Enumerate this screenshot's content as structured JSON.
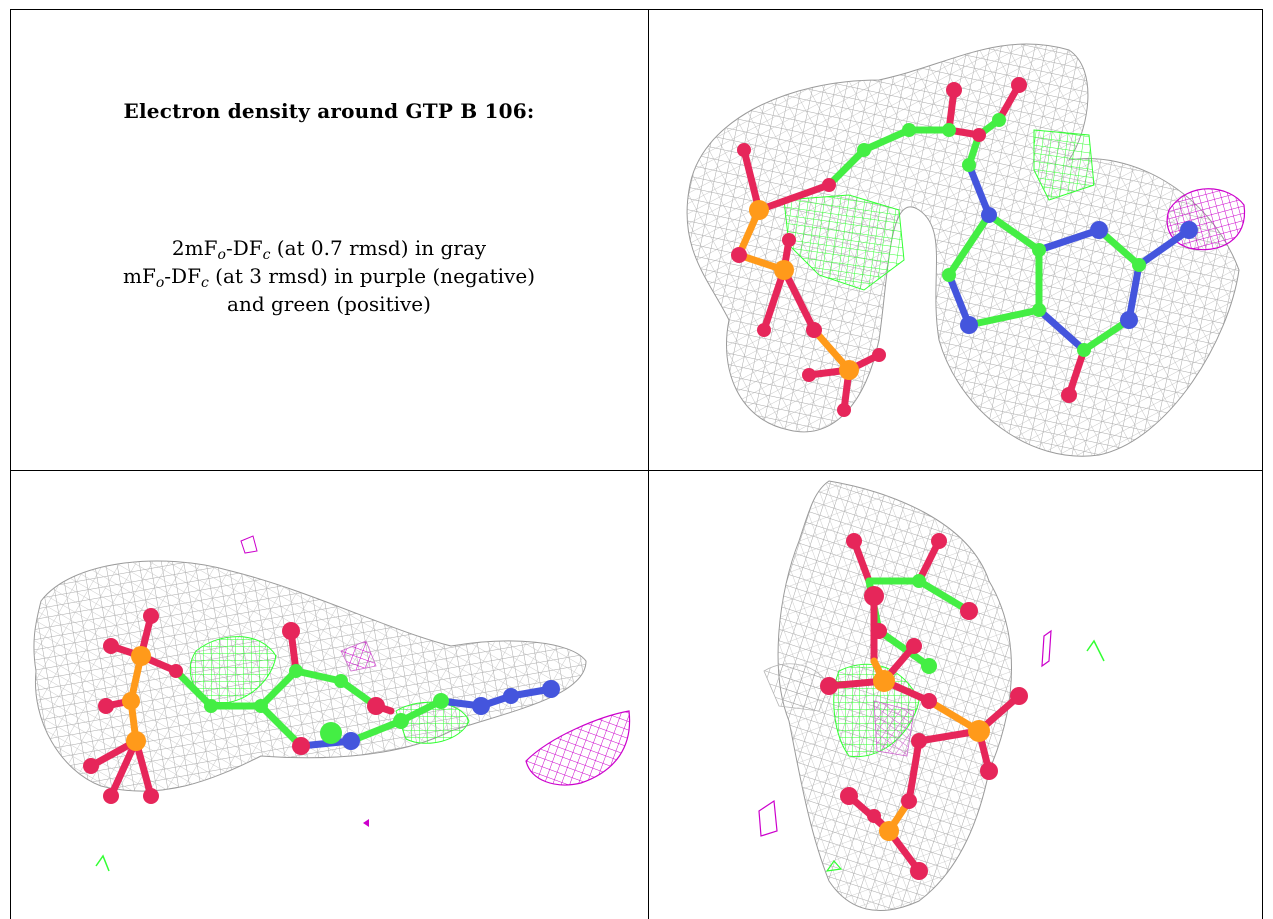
{
  "caption": {
    "title": "Electron density around GTP B 106:",
    "line1": {
      "prefix": "2mF",
      "sub1": "o",
      "mid": "-DF",
      "sub2": "c",
      "suffix": " (at 0.7 rmsd) in gray"
    },
    "line2": {
      "prefix": "mF",
      "sub1": "o",
      "mid": "-DF",
      "sub2": "c",
      "suffix": " (at 3 rmsd) in purple (negative)"
    },
    "line3": "and green (positive)"
  },
  "panels": [
    {
      "id": "view-top-right",
      "ligand": "GTP B 106"
    },
    {
      "id": "view-bottom-left",
      "ligand": "GTP B 106"
    },
    {
      "id": "view-bottom-right",
      "ligand": "GTP B 106"
    }
  ],
  "colors": {
    "mesh_2fofc": "#a8a8a8",
    "mesh_negative": "#cc00cc",
    "mesh_positive": "#33ff33",
    "carbon": "#44ee44",
    "oxygen": "#e6265a",
    "phosphorus": "#ff9a1a",
    "nitrogen": "#4455dd"
  }
}
